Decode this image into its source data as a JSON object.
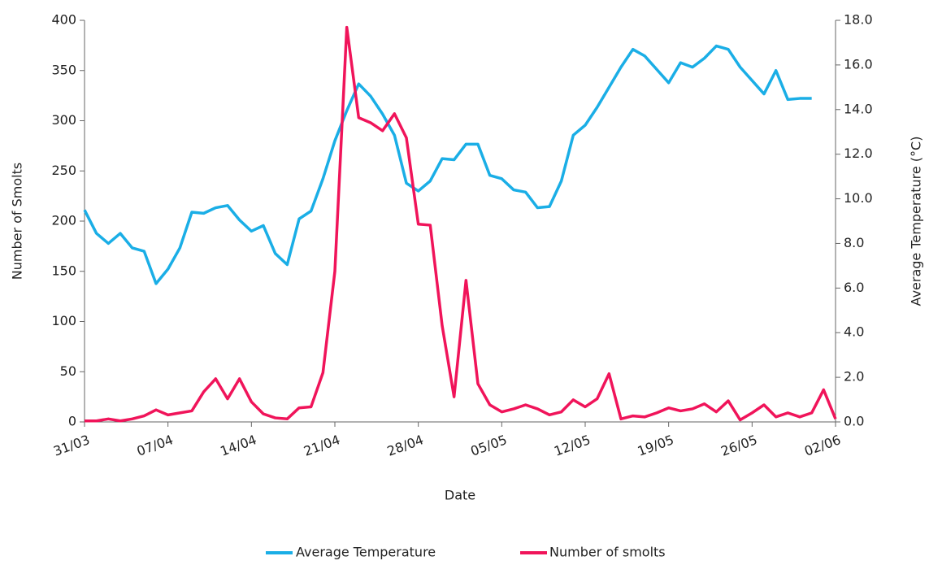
{
  "chart_data": {
    "type": "line",
    "x_label": "Date",
    "y_label": "Number of Smolts",
    "y2_label": "Average Temperature (°C)",
    "categories": [
      "31/03",
      null,
      null,
      null,
      null,
      null,
      null,
      "07/04",
      null,
      null,
      null,
      null,
      null,
      null,
      "14/04",
      null,
      null,
      null,
      null,
      null,
      null,
      "21/04",
      null,
      null,
      null,
      null,
      null,
      null,
      "28/04",
      null,
      null,
      null,
      null,
      null,
      null,
      "05/05",
      null,
      null,
      null,
      null,
      null,
      null,
      "12/05",
      null,
      null,
      null,
      null,
      null,
      null,
      "19/05",
      null,
      null,
      null,
      null,
      null,
      null,
      "26/05",
      null,
      null,
      null,
      null,
      null,
      null,
      "02/06"
    ],
    "series": [
      {
        "name": "Average Temperature",
        "color": "#1aaee6",
        "axis": "y2",
        "values": [
          9.5,
          8.45,
          8.0,
          8.45,
          7.8,
          7.65,
          6.2,
          6.85,
          7.8,
          9.4,
          9.35,
          9.6,
          9.7,
          9.05,
          8.55,
          8.8,
          7.55,
          7.05,
          9.1,
          9.45,
          10.9,
          12.6,
          13.95,
          15.15,
          14.6,
          13.8,
          12.85,
          10.7,
          10.35,
          10.8,
          11.8,
          11.75,
          12.45,
          12.45,
          11.05,
          10.9,
          10.4,
          10.3,
          9.6,
          9.65,
          10.8,
          12.85,
          13.3,
          14.1,
          15.0,
          15.9,
          16.7,
          16.4,
          15.8,
          15.2,
          16.1,
          15.9,
          16.3,
          16.85,
          16.7,
          15.9,
          15.3,
          14.7,
          15.75,
          14.45,
          14.5,
          14.5,
          null,
          null
        ]
      },
      {
        "name": "Number of smolts",
        "color": "#f0145a",
        "values": [
          1,
          1,
          3,
          1,
          3,
          6,
          12,
          7,
          9,
          11,
          30,
          43,
          23,
          43,
          20,
          8,
          4,
          3,
          14,
          15,
          49,
          150,
          393,
          303,
          298,
          290,
          307,
          283,
          197,
          196,
          96,
          25,
          141,
          38,
          17,
          10,
          13,
          17,
          13,
          7,
          10,
          22,
          15,
          23,
          48,
          3,
          6,
          5,
          9,
          14,
          11,
          13,
          18,
          10,
          21,
          2,
          9,
          17,
          5,
          9,
          5,
          9,
          32,
          3
        ]
      }
    ],
    "ylim": [
      0,
      400
    ],
    "yticks": [
      0,
      50,
      100,
      150,
      200,
      250,
      300,
      350,
      400
    ],
    "y2lim": [
      0,
      18
    ],
    "y2ticks": [
      {
        "value": 0,
        "label": "0.0"
      },
      {
        "value": 2,
        "label": "2.0"
      },
      {
        "value": 4,
        "label": "4.0"
      },
      {
        "value": 6,
        "label": "6.0"
      },
      {
        "value": 8,
        "label": "8.0"
      },
      {
        "value": 10,
        "label": "10.0"
      },
      {
        "value": 12,
        "label": "12.0"
      },
      {
        "value": 14,
        "label": "14.0"
      },
      {
        "value": 16,
        "label": "16.0"
      },
      {
        "value": 18,
        "label": "18.0"
      }
    ],
    "grid": false,
    "legend": "bottom"
  }
}
